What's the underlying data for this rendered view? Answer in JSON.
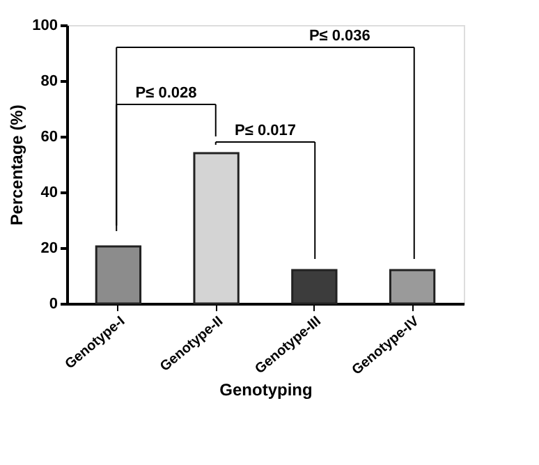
{
  "chart_data": {
    "type": "bar",
    "xlabel": "Genotyping",
    "ylabel": "Percentage (%)",
    "categories": [
      "Genotype-I",
      "Genotype-II",
      "Genotype-III",
      "Genotype-IV"
    ],
    "values": [
      20.5,
      54,
      12,
      12
    ],
    "colors": [
      "#8c8c8c",
      "#d4d4d4",
      "#3c3c3c",
      "#9a9a9a"
    ],
    "ylim": [
      0,
      100
    ],
    "yticks": [
      0,
      20,
      40,
      60,
      80,
      100
    ],
    "grid": false,
    "annotations": [
      "P≤ 0.028",
      "P≤ 0.017",
      "P≤ 0.036"
    ]
  }
}
